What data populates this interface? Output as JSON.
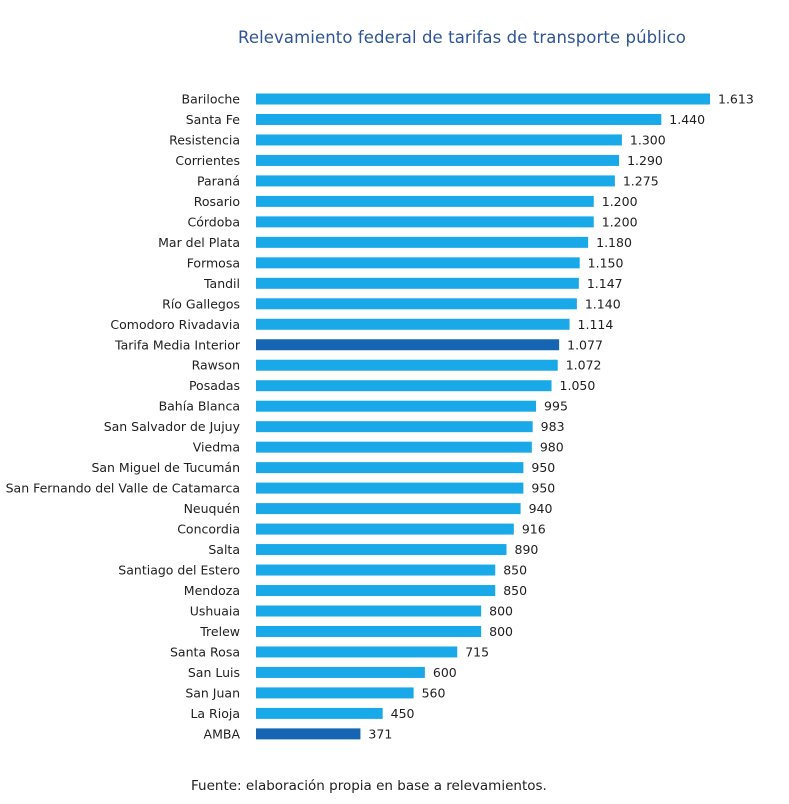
{
  "chart_data": {
    "type": "bar",
    "orientation": "horizontal",
    "title": "Relevamiento federal de tarifas de transporte público",
    "categories": [
      "Bariloche",
      "Santa Fe",
      "Resistencia",
      "Corrientes",
      "Paraná",
      "Rosario",
      "Córdoba",
      "Mar del Plata",
      "Formosa",
      "Tandil",
      "Río Gallegos",
      "Comodoro Rivadavia",
      "Tarifa Media Interior",
      "Rawson",
      "Posadas",
      "Bahía Blanca",
      "San Salvador de Jujuy",
      "Viedma",
      "San Miguel de Tucumán",
      "San Fernando del Valle de Catamarca",
      "Neuquén",
      "Concordia",
      "Salta",
      "Santiago del Estero",
      "Mendoza",
      "Ushuaia",
      "Trelew",
      "Santa Rosa",
      "San Luis",
      "San Juan",
      "La Rioja",
      "AMBA"
    ],
    "values": [
      1613,
      1440,
      1300,
      1290,
      1275,
      1200,
      1200,
      1180,
      1150,
      1147,
      1140,
      1114,
      1077,
      1072,
      1050,
      995,
      983,
      980,
      950,
      950,
      940,
      916,
      890,
      850,
      850,
      800,
      800,
      715,
      600,
      560,
      450,
      371
    ],
    "value_labels": [
      "1.613",
      "1.440",
      "1.300",
      "1.290",
      "1.275",
      "1.200",
      "1.200",
      "1.180",
      "1.150",
      "1.147",
      "1.140",
      "1.114",
      "1.077",
      "1.072",
      "1.050",
      "995",
      "983",
      "980",
      "950",
      "950",
      "940",
      "916",
      "890",
      "850",
      "850",
      "800",
      "800",
      "715",
      "600",
      "560",
      "450",
      "371"
    ],
    "highlighted": [
      "Tarifa Media Interior",
      "AMBA"
    ],
    "colors": {
      "bar": "#1aa9e8",
      "highlight": "#1565b2"
    },
    "xlim": [
      0,
      1613
    ],
    "grid": false,
    "legend": "none"
  },
  "footer": {
    "source": "Fuente: elaboración propia en base a relevamientos."
  }
}
